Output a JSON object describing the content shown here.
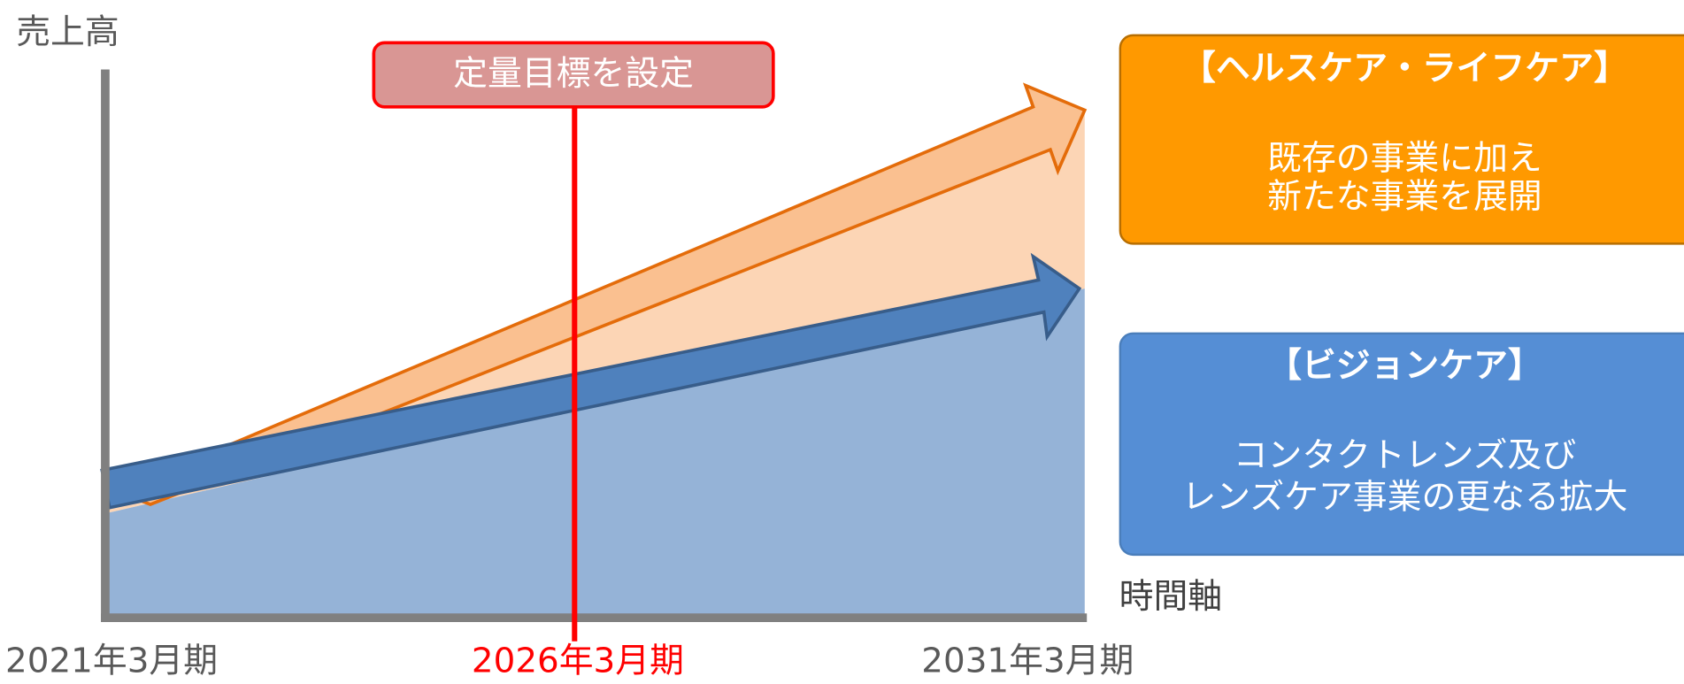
{
  "axes": {
    "y_label": "売上高",
    "x_label": "時間軸"
  },
  "target": {
    "label": "定量目標を設定"
  },
  "timeline": [
    "2021年3月期",
    "2026年3月期",
    "2031年3月期"
  ],
  "segments": [
    {
      "title": "【ヘルスケア・ライフケア】",
      "lines": [
        "既存の事業に加え",
        "新たな事業を展開"
      ]
    },
    {
      "title": "【ビジョンケア】",
      "lines": [
        "コンタクトレンズ及び",
        "レンズケア事業の更なる拡大"
      ]
    }
  ]
}
